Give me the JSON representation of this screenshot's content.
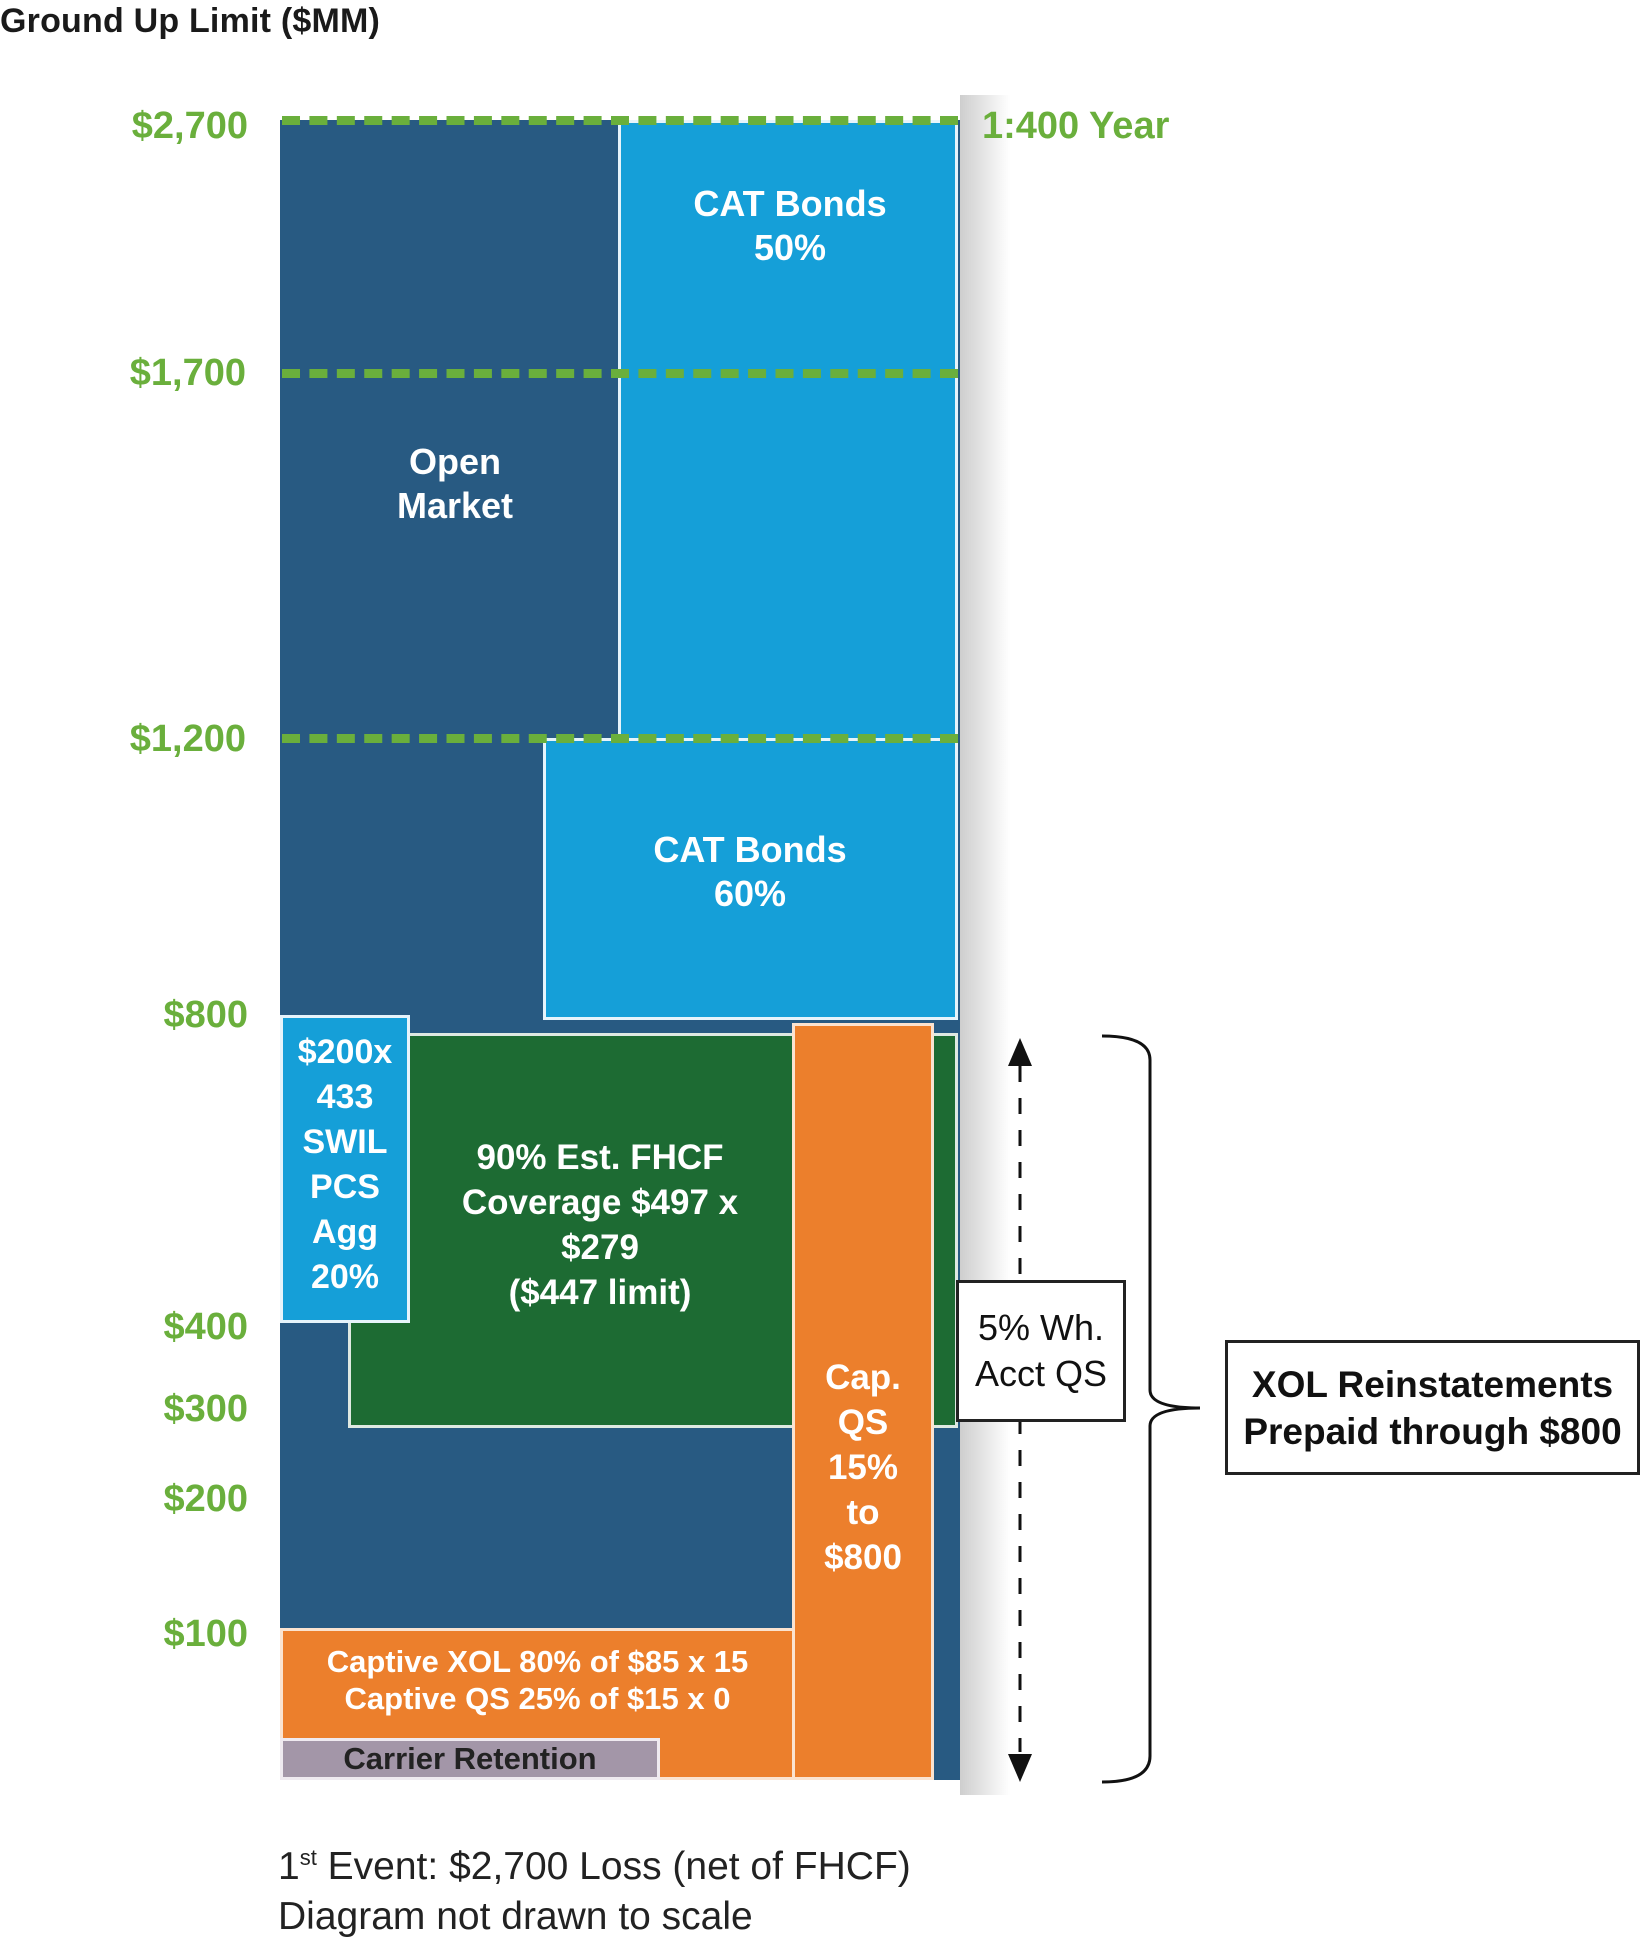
{
  "title": "Ground Up Limit ($MM)",
  "y_labels": [
    "$2,700",
    "$1,700",
    "$1,200",
    "$800",
    "$400",
    "$300",
    "$200",
    "$100"
  ],
  "return_period": "1:400 Year",
  "blocks": {
    "open_market": [
      "Open",
      "Market"
    ],
    "cat_bonds_50": [
      "CAT Bonds",
      "50%"
    ],
    "cat_bonds_60": [
      "CAT Bonds",
      "60%"
    ],
    "swil": [
      "$200x",
      "433",
      "SWIL",
      "PCS",
      "Agg",
      "20%"
    ],
    "fhcf": [
      "90% Est. FHCF",
      "Coverage $497 x",
      "$279",
      "($447 limit)"
    ],
    "cap_qs": [
      "Cap.",
      "QS",
      "15%",
      "to",
      "$800"
    ],
    "captive_xol": [
      "Captive XOL 80% of $85 x 15",
      "Captive QS 25% of $15 x 0"
    ],
    "carrier_retention": "Carrier Retention"
  },
  "wh_acct_qs": [
    "5% Wh.",
    "Acct QS"
  ],
  "xol_reinstatements": [
    "XOL Reinstatements",
    "Prepaid through $800"
  ],
  "footer": {
    "event_prefix": "1",
    "event_sup": "st",
    "event_rest": " Event: $2,700 Loss (net of FHCF)",
    "note": "Diagram not drawn to scale"
  },
  "colors": {
    "navy": "#285a82",
    "sky": "#159fd8",
    "green": "#1d6b33",
    "orange": "#ec7f2c",
    "grey": "#a396a8",
    "label_green": "#6aaf3c"
  }
}
